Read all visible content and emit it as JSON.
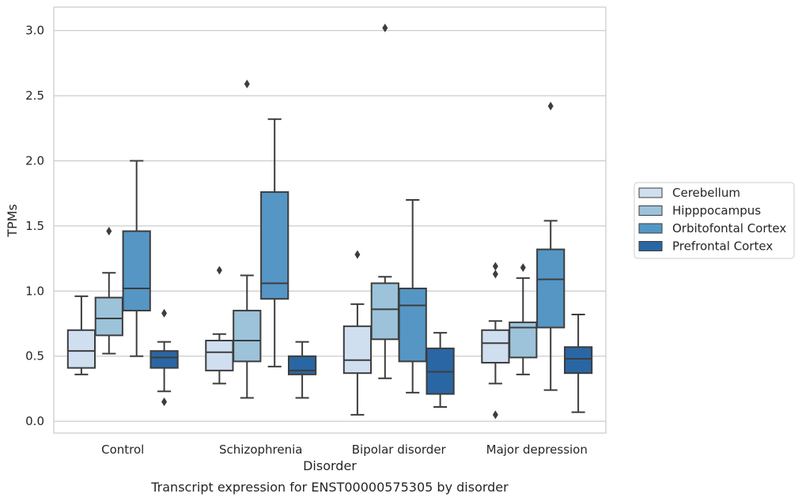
{
  "chart_data": {
    "type": "box",
    "caption": "Transcript expression for ENST00000575305 by disorder",
    "xlabel": "Disorder",
    "ylabel": "TPMs",
    "ylim": [
      -0.09,
      3.18
    ],
    "yticks": [
      "0.0",
      "0.5",
      "1.0",
      "1.5",
      "2.0",
      "2.5",
      "3.0"
    ],
    "grid": true,
    "legend_position": "right",
    "categories": [
      "Control",
      "Schizophrenia",
      "Bipolar disorder",
      "Major depression"
    ],
    "series": [
      {
        "name": "Cerebellum",
        "color": "#cfdff0",
        "boxes": [
          {
            "whislo": 0.36,
            "q1": 0.41,
            "med": 0.54,
            "q3": 0.7,
            "whishi": 0.96,
            "fliers": []
          },
          {
            "whislo": 0.29,
            "q1": 0.39,
            "med": 0.53,
            "q3": 0.62,
            "whishi": 0.67,
            "fliers": [
              1.16
            ]
          },
          {
            "whislo": 0.05,
            "q1": 0.37,
            "med": 0.47,
            "q3": 0.73,
            "whishi": 0.9,
            "fliers": [
              1.28
            ]
          },
          {
            "whislo": 0.29,
            "q1": 0.45,
            "med": 0.6,
            "q3": 0.7,
            "whishi": 0.77,
            "fliers": [
              0.05,
              1.13,
              1.19
            ]
          }
        ]
      },
      {
        "name": "Hipppocampus",
        "color": "#9cc3da",
        "boxes": [
          {
            "whislo": 0.52,
            "q1": 0.66,
            "med": 0.79,
            "q3": 0.95,
            "whishi": 1.14,
            "fliers": [
              1.46
            ]
          },
          {
            "whislo": 0.18,
            "q1": 0.46,
            "med": 0.62,
            "q3": 0.85,
            "whishi": 1.12,
            "fliers": [
              2.59
            ]
          },
          {
            "whislo": 0.33,
            "q1": 0.63,
            "med": 0.86,
            "q3": 1.06,
            "whishi": 1.11,
            "fliers": [
              3.02
            ]
          },
          {
            "whislo": 0.36,
            "q1": 0.49,
            "med": 0.72,
            "q3": 0.76,
            "whishi": 1.1,
            "fliers": [
              1.18
            ]
          }
        ]
      },
      {
        "name": "Orbitofontal Cortex",
        "color": "#5596c5",
        "boxes": [
          {
            "whislo": 0.5,
            "q1": 0.85,
            "med": 1.02,
            "q3": 1.46,
            "whishi": 2.0,
            "fliers": []
          },
          {
            "whislo": 0.42,
            "q1": 0.94,
            "med": 1.06,
            "q3": 1.76,
            "whishi": 2.32,
            "fliers": []
          },
          {
            "whislo": 0.22,
            "q1": 0.46,
            "med": 0.89,
            "q3": 1.02,
            "whishi": 1.7,
            "fliers": []
          },
          {
            "whislo": 0.24,
            "q1": 0.72,
            "med": 1.09,
            "q3": 1.32,
            "whishi": 1.54,
            "fliers": [
              2.42
            ]
          }
        ]
      },
      {
        "name": "Prefrontal Cortex",
        "color": "#2a66a3",
        "boxes": [
          {
            "whislo": 0.23,
            "q1": 0.41,
            "med": 0.49,
            "q3": 0.54,
            "whishi": 0.61,
            "fliers": [
              0.15,
              0.83
            ]
          },
          {
            "whislo": 0.18,
            "q1": 0.36,
            "med": 0.39,
            "q3": 0.5,
            "whishi": 0.61,
            "fliers": []
          },
          {
            "whislo": 0.11,
            "q1": 0.21,
            "med": 0.38,
            "q3": 0.56,
            "whishi": 0.68,
            "fliers": []
          },
          {
            "whislo": 0.07,
            "q1": 0.37,
            "med": 0.48,
            "q3": 0.57,
            "whishi": 0.82,
            "fliers": []
          }
        ]
      }
    ]
  }
}
